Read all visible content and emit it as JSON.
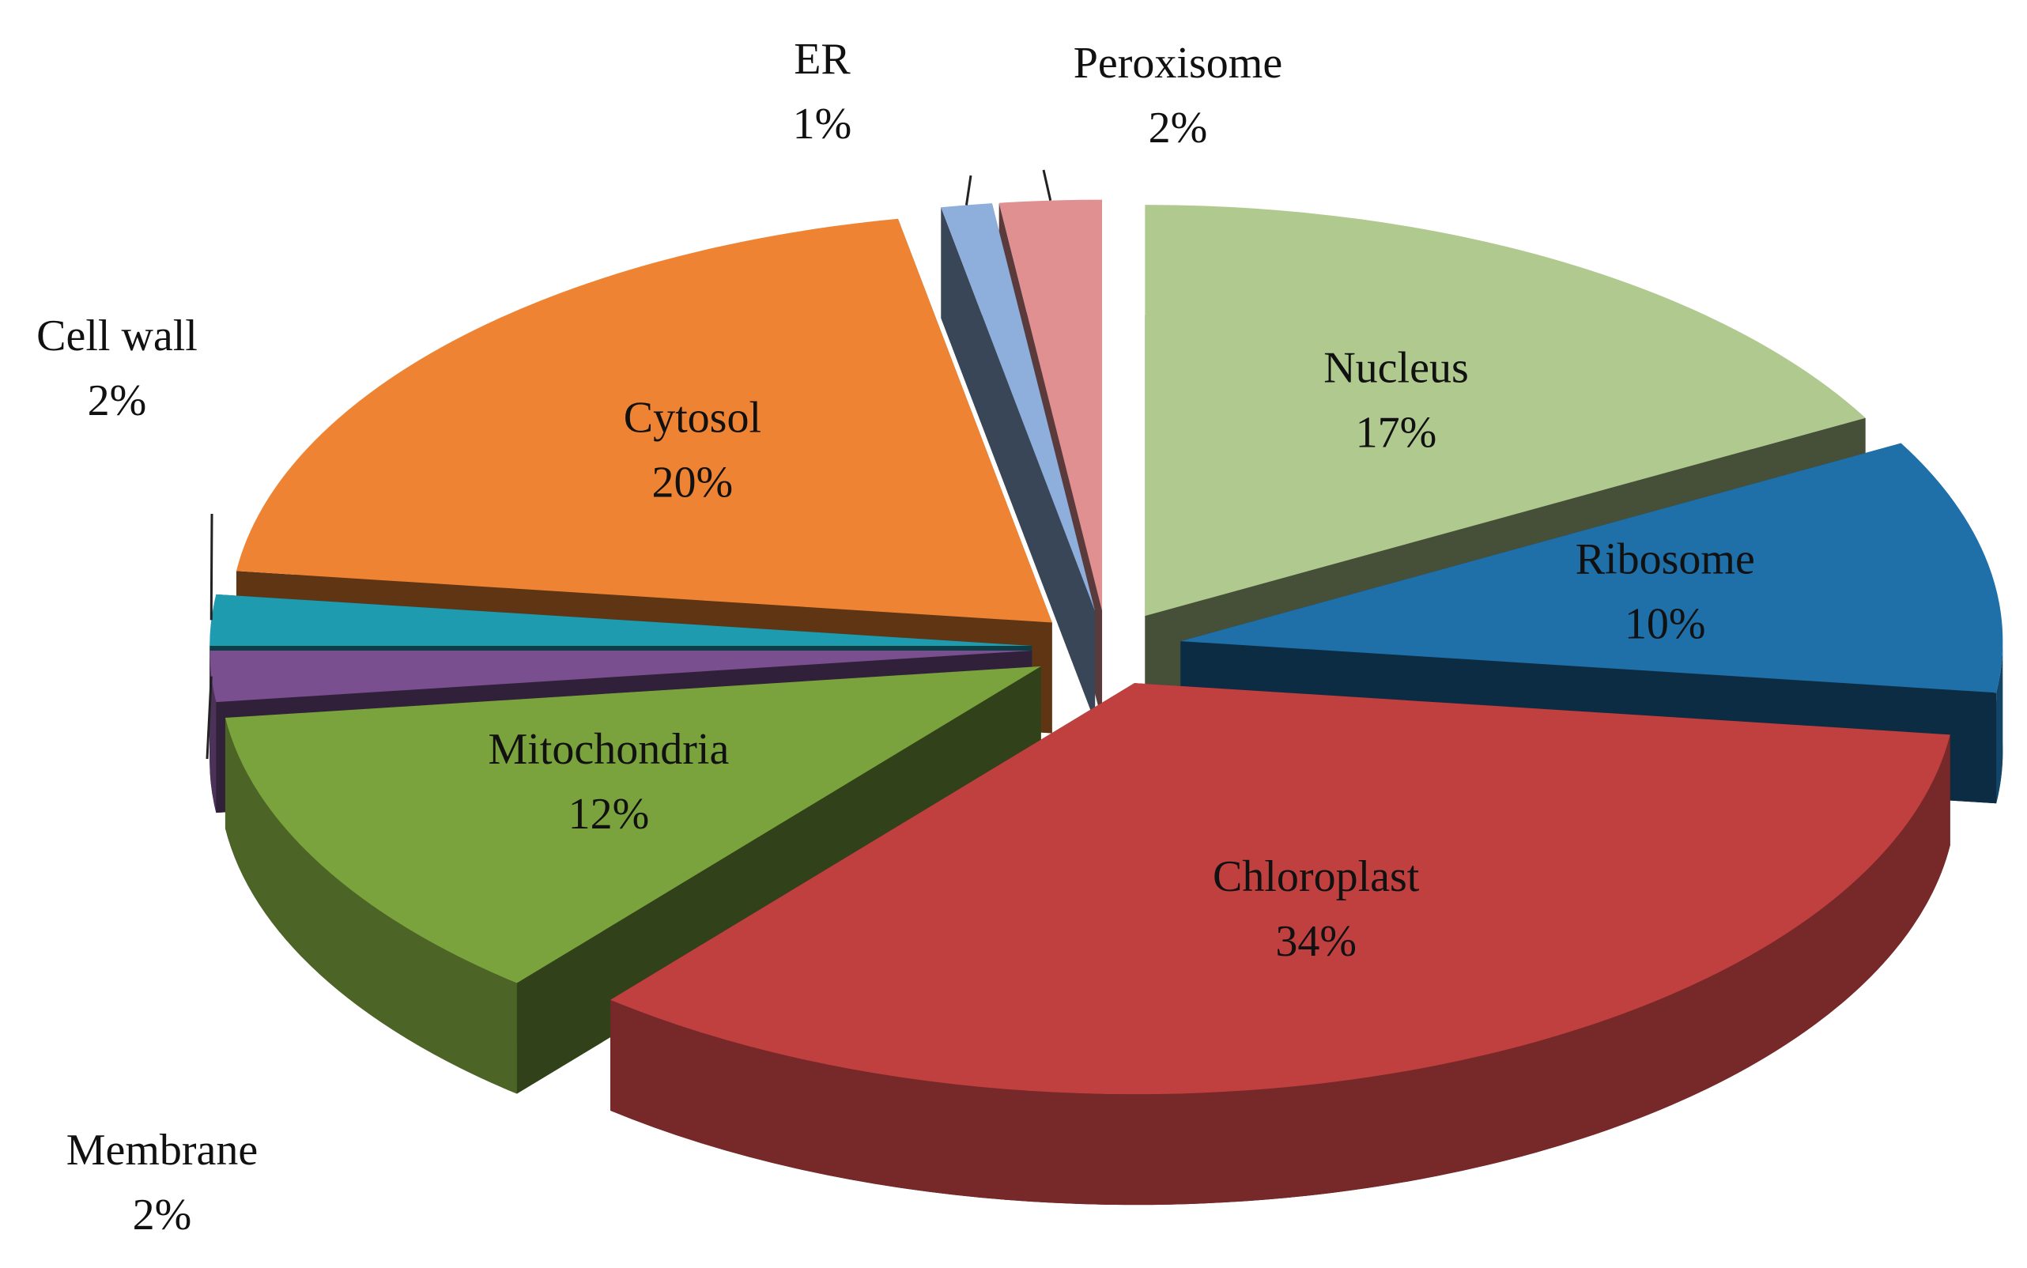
{
  "chart_data": {
    "type": "pie",
    "categories": [
      "Nucleus",
      "Ribosome",
      "Chloroplast",
      "Mitochondria",
      "Membrane",
      "Cell wall",
      "Cytosol",
      "ER",
      "Peroxisome"
    ],
    "values": [
      17,
      10,
      34,
      12,
      2,
      2,
      20,
      1,
      2
    ],
    "value_labels": [
      "17%",
      "10%",
      "34%",
      "12%",
      "2%",
      "2%",
      "20%",
      "1%",
      "2%"
    ],
    "colors": [
      "#afc98f",
      "#1f6fa8",
      "#c04040",
      "#7aa33e",
      "#7a4f8f",
      "#1f9bb0",
      "#ee8433",
      "#8eaedb",
      "#e09090"
    ]
  }
}
